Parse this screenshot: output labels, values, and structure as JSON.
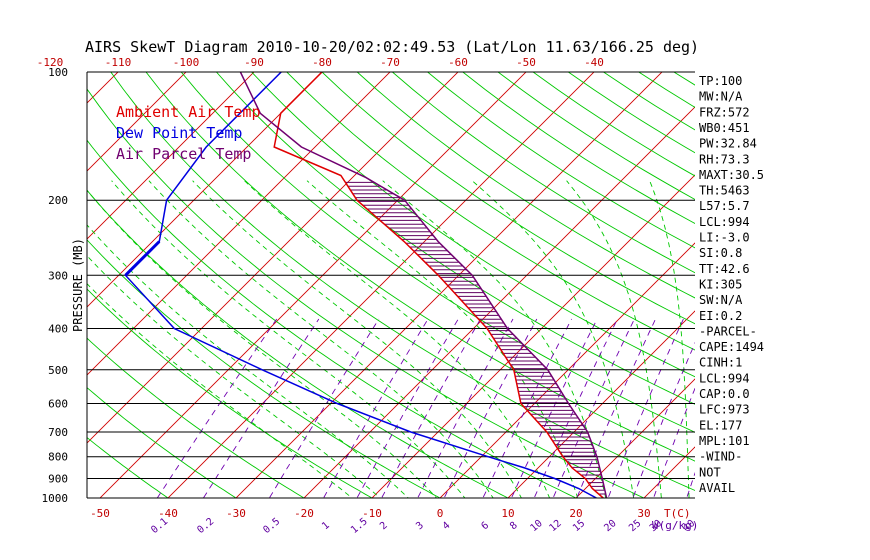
{
  "chart_data": {
    "type": "line",
    "title": "AIRS SkewT Diagram 2010-10-20/02:02:49.53 (Lat/Lon 11.63/166.25 deg)",
    "ylabel": "PRESSURE (MB)",
    "xlabel": "T(C)",
    "mixing_label": "W(g/kg)",
    "ylim": [
      1000,
      100
    ],
    "pressure_ticks": [
      100,
      200,
      300,
      400,
      500,
      600,
      700,
      800,
      900,
      1000
    ],
    "bottom_temp_ticks": [
      -50,
      -40,
      -30,
      -20,
      -10,
      0,
      10,
      20,
      30
    ],
    "top_temp_ticks": [
      -120,
      -110,
      -100,
      -90,
      -80,
      -70,
      -60,
      -50,
      -40
    ],
    "mixing_ticks": [
      "0.1",
      "0.2",
      "0.5",
      "1",
      "1.5",
      "2",
      "3",
      "4",
      "6",
      "8",
      "10",
      "12",
      "15",
      "20",
      "25",
      "30",
      "40"
    ],
    "legend": [
      {
        "name": "Ambient Air Temp",
        "color": "#e00000"
      },
      {
        "name": "Dew Point Temp",
        "color": "#0000e0"
      },
      {
        "name": "Air Parcel Temp",
        "color": "#700070"
      }
    ],
    "colors": {
      "isotherm": "#d00000",
      "dry_adiabat": "#00c800",
      "moist_adiabat": "#00c800",
      "mixing_ratio": "#7000b0",
      "isobar": "#000000",
      "hatch": "#600060"
    },
    "series": [
      {
        "name": "Ambient Air Temp",
        "points": [
          [
            1000,
            24
          ],
          [
            950,
            21
          ],
          [
            900,
            18.5
          ],
          [
            850,
            15
          ],
          [
            800,
            12
          ],
          [
            700,
            6
          ],
          [
            600,
            -2
          ],
          [
            500,
            -8
          ],
          [
            400,
            -18
          ],
          [
            300,
            -33
          ],
          [
            250,
            -43
          ],
          [
            200,
            -56
          ],
          [
            175,
            -62
          ],
          [
            150,
            -76
          ],
          [
            125,
            -80
          ],
          [
            100,
            -80
          ]
        ]
      },
      {
        "name": "Dew Point Temp",
        "points": [
          [
            1000,
            23
          ],
          [
            950,
            19
          ],
          [
            900,
            14
          ],
          [
            850,
            8
          ],
          [
            800,
            1
          ],
          [
            700,
            -14
          ],
          [
            600,
            -29
          ],
          [
            500,
            -45
          ],
          [
            400,
            -64
          ],
          [
            300,
            -79
          ],
          [
            250,
            -79
          ],
          [
            200,
            -84
          ],
          [
            150,
            -86
          ],
          [
            125,
            -86
          ],
          [
            100,
            -86
          ]
        ]
      },
      {
        "name": "Air Parcel Temp",
        "points": [
          [
            1000,
            24.5
          ],
          [
            900,
            21
          ],
          [
            800,
            17
          ],
          [
            700,
            12
          ],
          [
            600,
            5
          ],
          [
            500,
            -3
          ],
          [
            400,
            -15
          ],
          [
            300,
            -28
          ],
          [
            250,
            -38
          ],
          [
            200,
            -49
          ],
          [
            177,
            -58
          ],
          [
            150,
            -72
          ],
          [
            125,
            -83
          ],
          [
            100,
            -92
          ]
        ]
      }
    ]
  },
  "indices": [
    "TP:100",
    "MW:N/A",
    "FRZ:572",
    "WB0:451",
    "PW:32.84",
    "RH:73.3",
    "MAXT:30.5",
    "TH:5463",
    "L57:5.7",
    "LCL:994",
    "LI:-3.0",
    "SI:0.8",
    "TT:42.6",
    "KI:305",
    "SW:N/A",
    "EI:0.2",
    "-PARCEL-",
    "CAPE:1494",
    "CINH:1",
    "LCL:994",
    "CAP:0.0",
    "LFC:973",
    "EL:177",
    "MPL:101",
    "-WIND-",
    " NOT",
    " AVAIL"
  ]
}
